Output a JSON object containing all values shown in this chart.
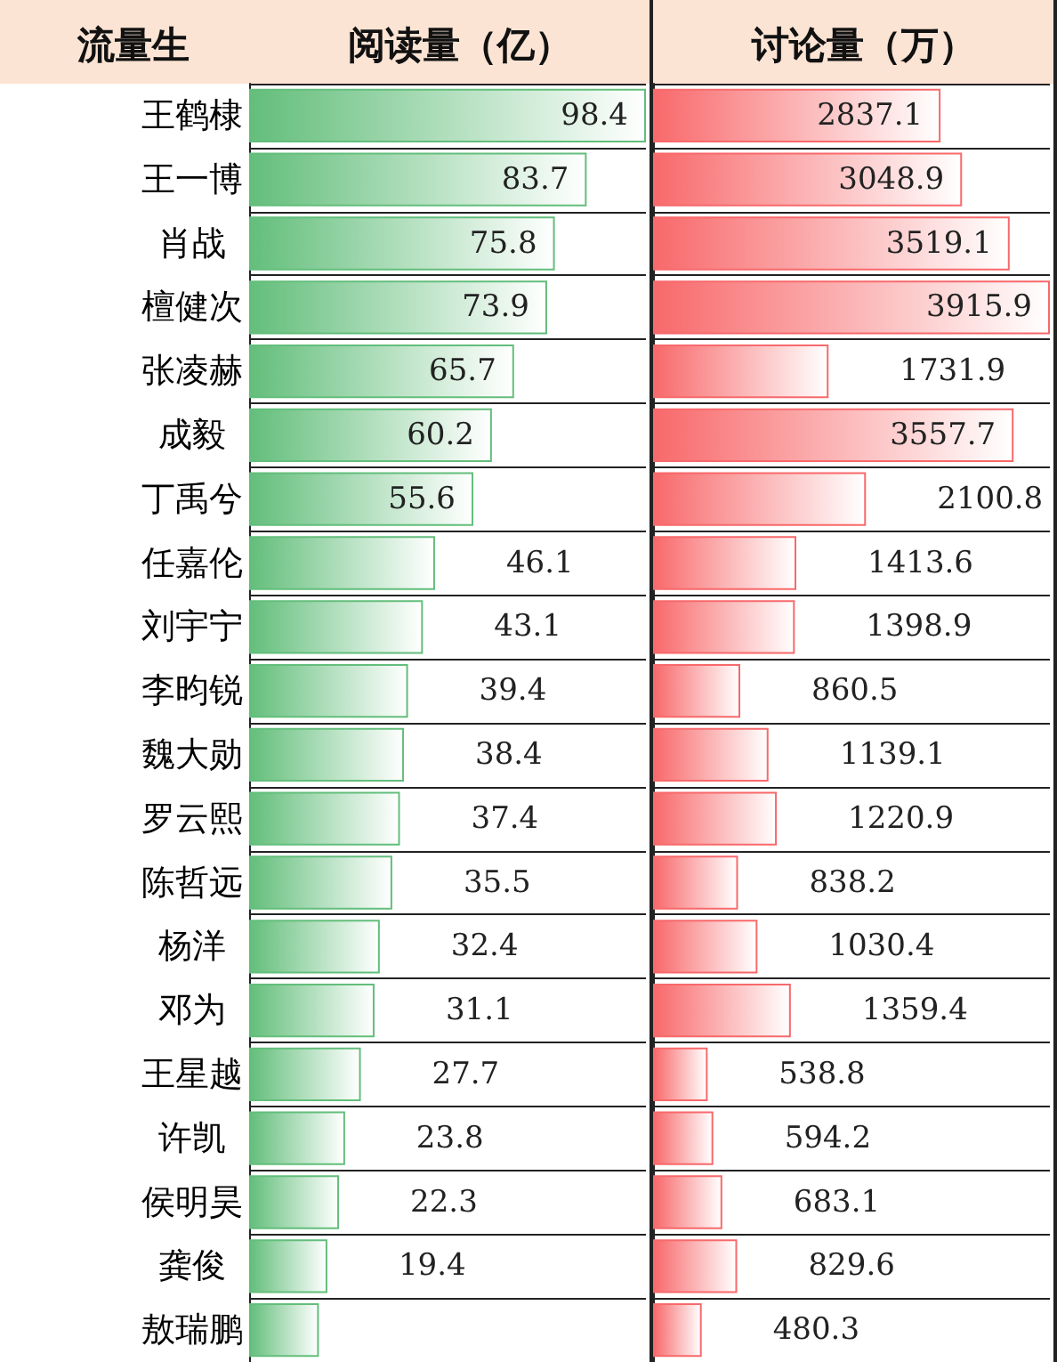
{
  "chart_data": [
    {
      "type": "bar",
      "orientation": "horizontal",
      "title": "阅读量（亿）",
      "ylabel": "流量生",
      "categories": [
        "王鹤棣",
        "王一博",
        "肖战",
        "檀健次",
        "张凌赫",
        "成毅",
        "丁禹兮",
        "任嘉伦",
        "刘宇宁",
        "李昀锐",
        "魏大勋",
        "罗云熙",
        "陈哲远",
        "杨洋",
        "邓为",
        "王星越",
        "许凯",
        "侯明昊",
        "龚俊",
        "敖瑞鹏"
      ],
      "series": [
        {
          "color": "#63be7b",
          "values": [
            98.4,
            83.7,
            75.8,
            73.9,
            65.7,
            60.2,
            55.6,
            46.1,
            43.1,
            39.4,
            38.4,
            37.4,
            35.5,
            32.4,
            31.1,
            27.7,
            23.8,
            22.3,
            19.4,
            17.3
          ],
          "value_labels": [
            "98.4",
            "83.7",
            "75.8",
            "73.9",
            "65.7",
            "60.2",
            "55.6",
            "46.1",
            "43.1",
            "39.4",
            "38.4",
            "37.4",
            "35.5",
            "32.4",
            "31.1",
            "27.7",
            "23.8",
            "22.3",
            "19.4",
            null
          ]
        }
      ],
      "tick_labels": "y",
      "grid": "y"
    },
    {
      "type": "bar",
      "orientation": "horizontal",
      "title": "讨论量（万）",
      "categories": [
        null,
        null,
        null,
        null,
        null,
        null,
        null,
        null,
        null,
        null,
        null,
        null,
        null,
        null,
        null,
        null,
        null,
        null,
        null,
        null
      ],
      "series": [
        {
          "color": "#f8696b",
          "values": [
            2837.1,
            3048.9,
            3519.1,
            3915.9,
            1731.9,
            3557.7,
            2100.8,
            1413.6,
            1398.9,
            860.5,
            1139.1,
            1220.9,
            838.2,
            1030.4,
            1359.4,
            538.8,
            594.2,
            683.1,
            829.6,
            480.3
          ]
        }
      ],
      "data_labels": true,
      "grid": "y"
    }
  ]
}
